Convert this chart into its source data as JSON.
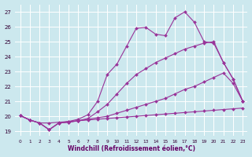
{
  "xlabel": "Windchill (Refroidissement éolien,°C)",
  "bg_color": "#cce8ee",
  "grid_color": "#ffffff",
  "line_color": "#993399",
  "x_ticks": [
    0,
    1,
    2,
    3,
    4,
    5,
    6,
    7,
    8,
    9,
    10,
    11,
    12,
    13,
    14,
    15,
    16,
    17,
    18,
    19,
    20,
    21,
    22,
    23
  ],
  "ylim": [
    18.7,
    27.5
  ],
  "xlim": [
    -0.5,
    23.5
  ],
  "yticks": [
    19,
    20,
    21,
    22,
    23,
    24,
    25,
    26,
    27
  ],
  "series": [
    {
      "x": [
        0,
        1,
        2,
        3,
        4,
        5,
        6,
        7,
        8,
        9,
        10,
        11,
        12,
        13,
        14,
        15,
        16,
        17,
        18,
        19,
        20,
        21,
        22,
        23
      ],
      "y": [
        20.05,
        19.75,
        19.55,
        19.55,
        19.6,
        19.65,
        19.7,
        19.75,
        19.8,
        19.85,
        19.9,
        19.95,
        20.0,
        20.05,
        20.1,
        20.15,
        20.2,
        20.25,
        20.3,
        20.35,
        20.4,
        20.45,
        20.5,
        20.55
      ]
    },
    {
      "x": [
        0,
        1,
        2,
        3,
        4,
        5,
        6,
        7,
        8,
        9,
        10,
        11,
        12,
        13,
        14,
        15,
        16,
        17,
        18,
        19,
        20,
        21,
        22,
        23
      ],
      "y": [
        20.05,
        19.75,
        19.55,
        19.1,
        19.55,
        19.6,
        19.7,
        19.8,
        19.9,
        20.0,
        20.2,
        20.4,
        20.6,
        20.8,
        21.0,
        21.2,
        21.5,
        21.8,
        22.0,
        22.3,
        22.6,
        22.9,
        22.2,
        21.0
      ]
    },
    {
      "x": [
        0,
        1,
        2,
        3,
        4,
        5,
        6,
        7,
        8,
        9,
        10,
        11,
        12,
        13,
        14,
        15,
        16,
        17,
        18,
        19,
        20,
        21,
        22,
        23
      ],
      "y": [
        20.05,
        19.75,
        19.55,
        19.1,
        19.55,
        19.6,
        19.7,
        19.85,
        20.3,
        20.8,
        21.5,
        22.2,
        22.8,
        23.2,
        23.6,
        23.9,
        24.2,
        24.5,
        24.7,
        24.9,
        25.0,
        23.6,
        22.5,
        21.0
      ]
    },
    {
      "x": [
        0,
        1,
        2,
        3,
        4,
        5,
        6,
        7,
        8,
        9,
        10,
        11,
        12,
        13,
        14,
        15,
        16,
        17,
        18,
        19,
        20,
        21,
        22,
        23
      ],
      "y": [
        20.05,
        19.75,
        19.55,
        19.1,
        19.55,
        19.65,
        19.8,
        20.1,
        21.0,
        22.8,
        23.5,
        24.7,
        25.9,
        25.95,
        25.5,
        25.4,
        26.6,
        27.0,
        26.3,
        25.0,
        24.9,
        23.6,
        22.5,
        21.0
      ]
    }
  ]
}
